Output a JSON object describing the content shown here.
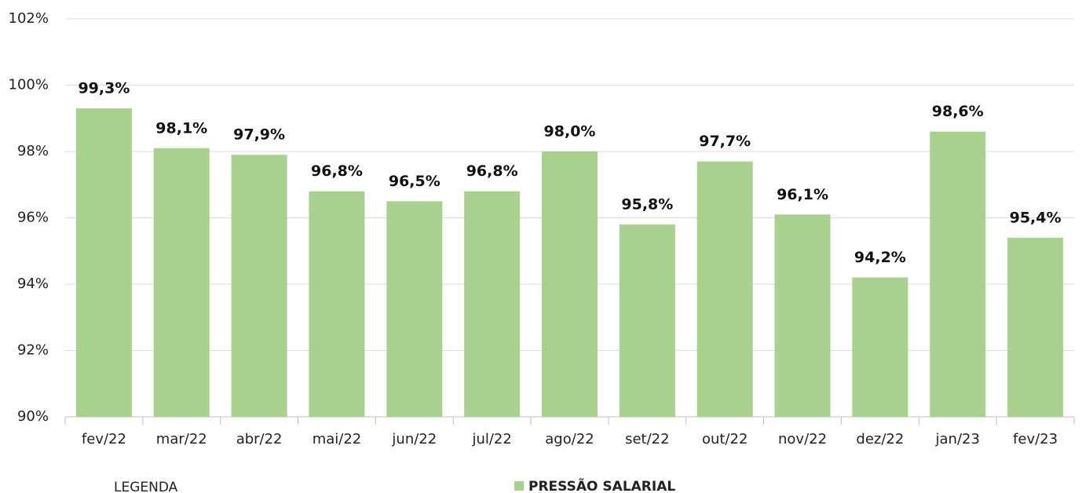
{
  "chart_data": {
    "type": "bar",
    "categories": [
      "fev/22",
      "mar/22",
      "abr/22",
      "mai/22",
      "jun/22",
      "jul/22",
      "ago/22",
      "set/22",
      "out/22",
      "nov/22",
      "dez/22",
      "jan/23",
      "fev/23"
    ],
    "series": [
      {
        "name": "PRESSÃO SALARIAL",
        "color": "#a9d18e",
        "values": [
          99.3,
          98.1,
          97.9,
          96.8,
          96.5,
          96.8,
          98.0,
          95.8,
          97.7,
          96.1,
          94.2,
          98.6,
          95.4
        ],
        "value_labels": [
          "99,3%",
          "98,1%",
          "97,9%",
          "96,8%",
          "96,5%",
          "96,8%",
          "98,0%",
          "95,8%",
          "97,7%",
          "96,1%",
          "94,2%",
          "98,6%",
          "95,4%"
        ]
      }
    ],
    "ylim": [
      90,
      102
    ],
    "yticks": [
      {
        "value": 90,
        "label": "90%"
      },
      {
        "value": 92,
        "label": "92%"
      },
      {
        "value": 94,
        "label": "94%"
      },
      {
        "value": 96,
        "label": "96%"
      },
      {
        "value": 98,
        "label": "98%"
      },
      {
        "value": 100,
        "label": "100%"
      },
      {
        "value": 102,
        "label": "102%"
      }
    ],
    "grid": true,
    "legend_title": "LEGENDA",
    "legend": "bottom"
  }
}
